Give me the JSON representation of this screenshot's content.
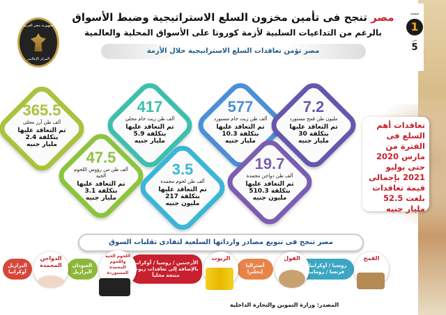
{
  "header": {
    "title_highlight": "مصر",
    "title_rest": " تنجح فى تأمين مخزون السلع الاستراتيجية وضبط الأسواق",
    "subtitle": "بالرغم من التداعيات السلبية لأزمة كورونا على الأسواق المحلية والعالمية",
    "section_title": "مصر تؤمن تعاقدات السلع الاستراتيجية خلال الأزمة"
  },
  "logo": {
    "top": "جمهورية مصر العربية",
    "middle": "رئاسة مجلس الوزراء",
    "bottom": "المركز الإعلامي"
  },
  "page_badge": {
    "label": "صفحة",
    "current": "1",
    "of": "من",
    "total": "5"
  },
  "items": [
    {
      "value": "365.5",
      "unit": "ألف طن أرز محلى",
      "l1": "تم التعاقد عليها",
      "l2": "بتكلفة 2.4",
      "l3": "مليار جنيه",
      "color": "#a8c33c"
    },
    {
      "value": "417",
      "unit": "ألف طن زيت خام محلى",
      "l1": "تم التعاقد عليها",
      "l2": "بتكلفة 5.9",
      "l3": "مليار جنيه",
      "color": "#3dbfae"
    },
    {
      "value": "577",
      "unit": "ألف طن زيت خام مستورد",
      "l1": "تم التعاقد عليها",
      "l2": "بتكلفة 10.3",
      "l3": "مليار جنيه",
      "color": "#4a90d8"
    },
    {
      "value": "7.2",
      "unit": "مليون طن قمح مستورد",
      "l1": "تم التعاقد عليها",
      "l2": "بتكلفة 30",
      "l3": "مليار جنيه",
      "color": "#6657ae"
    },
    {
      "value": "47.5",
      "unit": "ألف طن من رؤوس اللحوم الحية",
      "l1": "تم التعاقد عليها",
      "l2": "بتكلفة 3.1",
      "l3": "مليار جنيه",
      "color": "#8cc43f"
    },
    {
      "value": "3.5",
      "unit": "ألف طن لحوم مجمدة",
      "l1": "تم التعاقد عليها",
      "l2": "بتكلفة 217",
      "l3": "مليون جنيه",
      "color": "#3ab6d8"
    },
    {
      "value": "19.7",
      "unit": "ألف طن دواجن مجمدة",
      "l1": "تم التعاقد عليها",
      "l2": "بتكلفة 510.3",
      "l3": "مليون جنيه",
      "color": "#7a5eb2"
    }
  ],
  "summary": "تعاقدات أهم السلع فى الفترة من مارس 2020 حتى يوليو 2021 بإجمالى قيمة تعاقدات بلغت 52.5 مليار جنيه",
  "sources_banner": "مصر تنجح فى تنويع مصادر وارداتها السلعية لتفادى تقلبات السوق",
  "sources": [
    {
      "name": "القمح",
      "countries": "روسيا / أوكرانيا / فرنسا / رومانيا",
      "color": "#3ba7c4"
    },
    {
      "name": "الفول",
      "countries": "أستراليا إنجلترا",
      "color": "#e8834a"
    },
    {
      "name": "الزيوت",
      "countries": "الأرجنتين / روسيا / أوكرانيا بالإضافة إلى تعاقدات زيوت منتجة محلياً",
      "color": "#c8202e"
    },
    {
      "name": "اللحوم الحية واللحوم المجمدة المستوردة",
      "countries": "السودان البرازيل",
      "color": "#8cb83a"
    },
    {
      "name": "الدواجن المجمدة",
      "countries": "البرازيل أوكرانيا",
      "color": "#d8453a"
    }
  ],
  "source_note": "المصدر: وزارة التموين والتجارة الداخلية"
}
